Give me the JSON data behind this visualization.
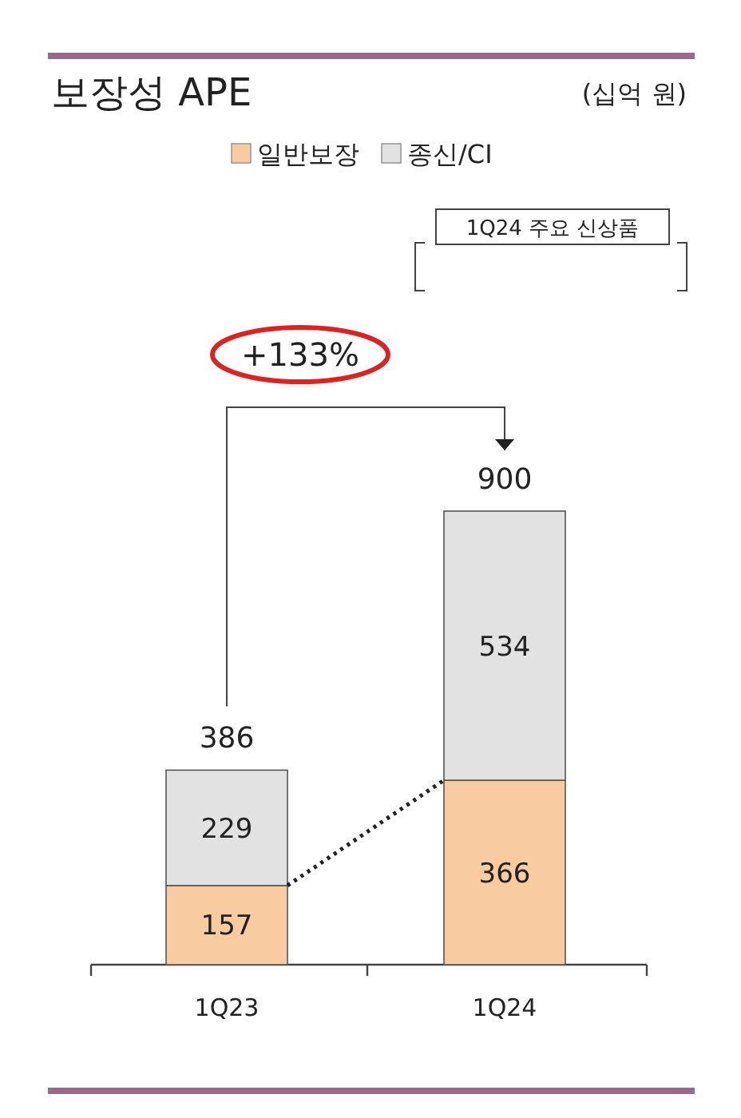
{
  "chart_data": {
    "type": "bar",
    "title": "보장성 APE",
    "subtitle": "(십억 원)",
    "categories": [
      "1Q23",
      "1Q24"
    ],
    "stacked": true,
    "data_labels": true,
    "legend": "top",
    "series": [
      {
        "name": "일반보장",
        "color": "#f8cba1",
        "values": [
          157,
          366
        ]
      },
      {
        "name": "종신/CI",
        "color": "#e2e2e2",
        "values": [
          229,
          534
        ]
      }
    ],
    "totals": [
      "386",
      "900"
    ],
    "annotations": [
      "+133%",
      "1Q24 주요 신상품"
    ]
  }
}
